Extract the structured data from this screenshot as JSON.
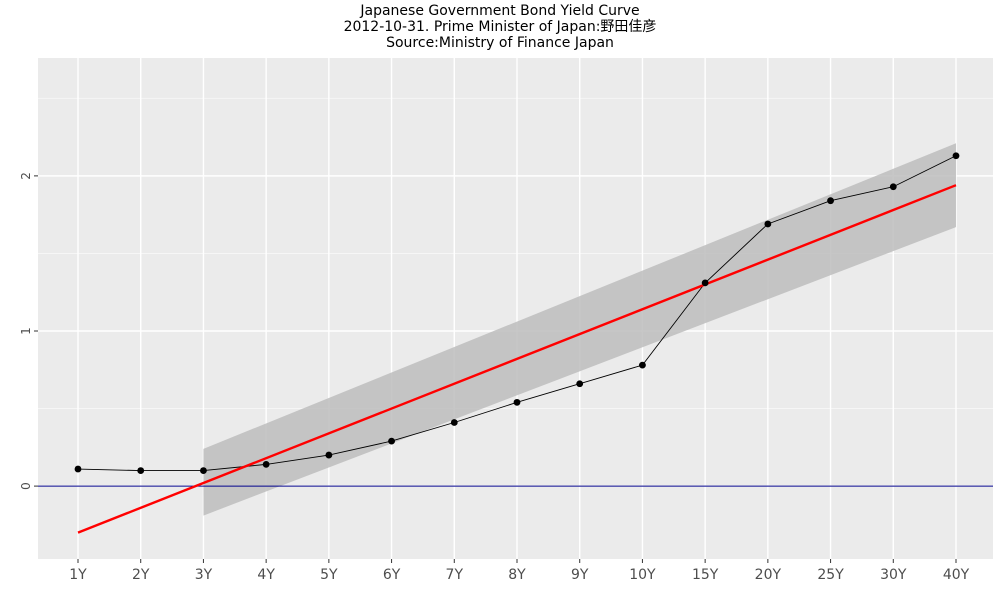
{
  "chart_data": {
    "type": "line",
    "title": "Japanese Government Bond Yield Curve",
    "subtitle_lines": [
      "2012-10-31. Prime Minister of Japan:野田佳彦",
      "Source:Ministry of Finance Japan"
    ],
    "xlabel": "",
    "ylabel": "",
    "categories": [
      "1Y",
      "2Y",
      "3Y",
      "4Y",
      "5Y",
      "6Y",
      "7Y",
      "8Y",
      "9Y",
      "10Y",
      "15Y",
      "20Y",
      "25Y",
      "30Y",
      "40Y"
    ],
    "series": [
      {
        "kind": "observed",
        "values": [
          0.11,
          0.1,
          0.1,
          0.14,
          0.2,
          0.29,
          0.41,
          0.54,
          0.66,
          0.78,
          1.31,
          1.69,
          1.84,
          1.93,
          2.13
        ],
        "color": "#000000"
      },
      {
        "kind": "linear_fit",
        "x_index_range": [
          1,
          15
        ],
        "y_at_start": -0.3,
        "y_at_end": 1.94,
        "color": "#ff0000"
      }
    ],
    "confidence_band": {
      "x_index_range": [
        3,
        15
      ],
      "lower_at_start": -0.19,
      "upper_at_start": 0.24,
      "lower_at_end": 1.67,
      "upper_at_end": 2.21,
      "color": "#bdbdbd"
    },
    "hline": {
      "y": 0,
      "color": "#00008b"
    },
    "yticks": [
      0,
      1,
      2
    ],
    "ylim": [
      -0.47,
      2.76
    ],
    "grid": true,
    "legend": "none",
    "panel_color": "#ebebeb"
  }
}
